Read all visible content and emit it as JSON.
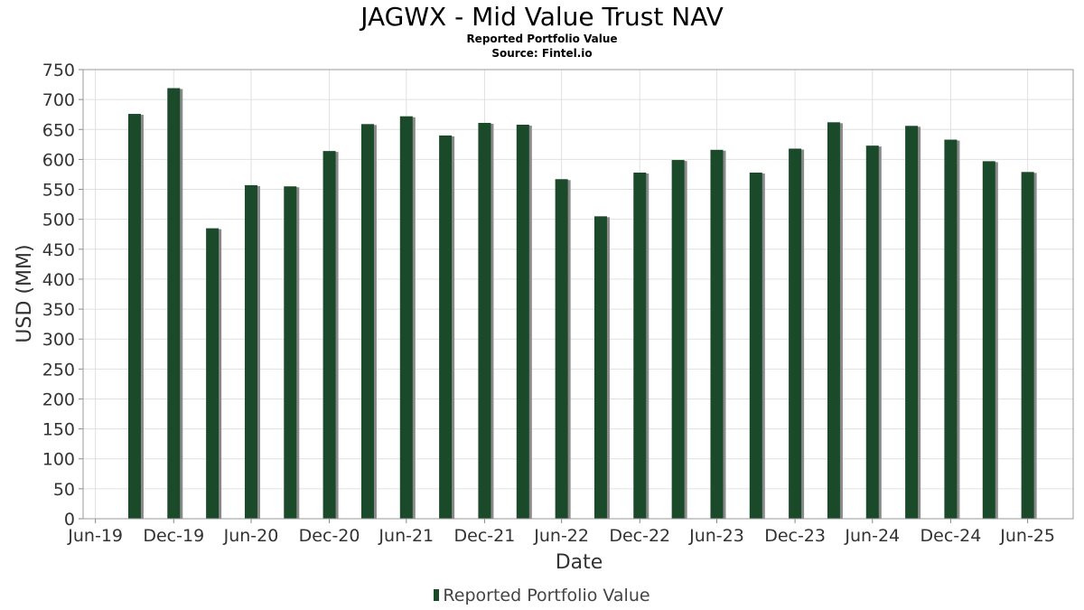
{
  "colors": {
    "bar": "#1a4a2a",
    "bar_shadow": "#8a8a8a",
    "grid": "#e0e0e0",
    "axis": "#888888",
    "plot_border": "#999999"
  },
  "chart_data": {
    "type": "bar",
    "title": "JAGWX - Mid Value Trust NAV",
    "subtitle_1": "Reported Portfolio Value",
    "subtitle_2": "Source: Fintel.io",
    "xlabel": "Date",
    "ylabel": "USD (MM)",
    "ylim": [
      0,
      750
    ],
    "ytick_step": 50,
    "xlim": [
      "2019-06-01",
      "2025-10-15"
    ],
    "xticks": [
      {
        "date": "2019-06-30",
        "label": "Jun-19"
      },
      {
        "date": "2019-12-31",
        "label": "Dec-19"
      },
      {
        "date": "2020-06-30",
        "label": "Jun-20"
      },
      {
        "date": "2020-12-31",
        "label": "Dec-20"
      },
      {
        "date": "2021-06-30",
        "label": "Jun-21"
      },
      {
        "date": "2021-12-31",
        "label": "Dec-21"
      },
      {
        "date": "2022-06-30",
        "label": "Jun-22"
      },
      {
        "date": "2022-12-31",
        "label": "Dec-22"
      },
      {
        "date": "2023-06-30",
        "label": "Jun-23"
      },
      {
        "date": "2023-12-31",
        "label": "Dec-23"
      },
      {
        "date": "2024-06-30",
        "label": "Jun-24"
      },
      {
        "date": "2024-12-31",
        "label": "Dec-24"
      },
      {
        "date": "2025-06-30",
        "label": "Jun-25"
      }
    ],
    "grid": true,
    "legend_position": "bottom",
    "series": [
      {
        "name": "Reported Portfolio Value",
        "points": [
          {
            "date": "2019-09-30",
            "value": 676
          },
          {
            "date": "2019-12-31",
            "value": 719
          },
          {
            "date": "2020-03-31",
            "value": 485
          },
          {
            "date": "2020-06-30",
            "value": 557
          },
          {
            "date": "2020-09-30",
            "value": 555
          },
          {
            "date": "2020-12-31",
            "value": 614
          },
          {
            "date": "2021-03-31",
            "value": 659
          },
          {
            "date": "2021-06-30",
            "value": 672
          },
          {
            "date": "2021-09-30",
            "value": 640
          },
          {
            "date": "2021-12-31",
            "value": 661
          },
          {
            "date": "2022-03-31",
            "value": 658
          },
          {
            "date": "2022-06-30",
            "value": 567
          },
          {
            "date": "2022-09-30",
            "value": 505
          },
          {
            "date": "2022-12-31",
            "value": 578
          },
          {
            "date": "2023-03-31",
            "value": 599
          },
          {
            "date": "2023-06-30",
            "value": 616
          },
          {
            "date": "2023-09-30",
            "value": 578
          },
          {
            "date": "2023-12-31",
            "value": 618
          },
          {
            "date": "2024-03-31",
            "value": 662
          },
          {
            "date": "2024-06-30",
            "value": 623
          },
          {
            "date": "2024-09-30",
            "value": 656
          },
          {
            "date": "2024-12-31",
            "value": 633
          },
          {
            "date": "2025-03-31",
            "value": 597
          },
          {
            "date": "2025-06-30",
            "value": 579
          }
        ]
      }
    ]
  }
}
